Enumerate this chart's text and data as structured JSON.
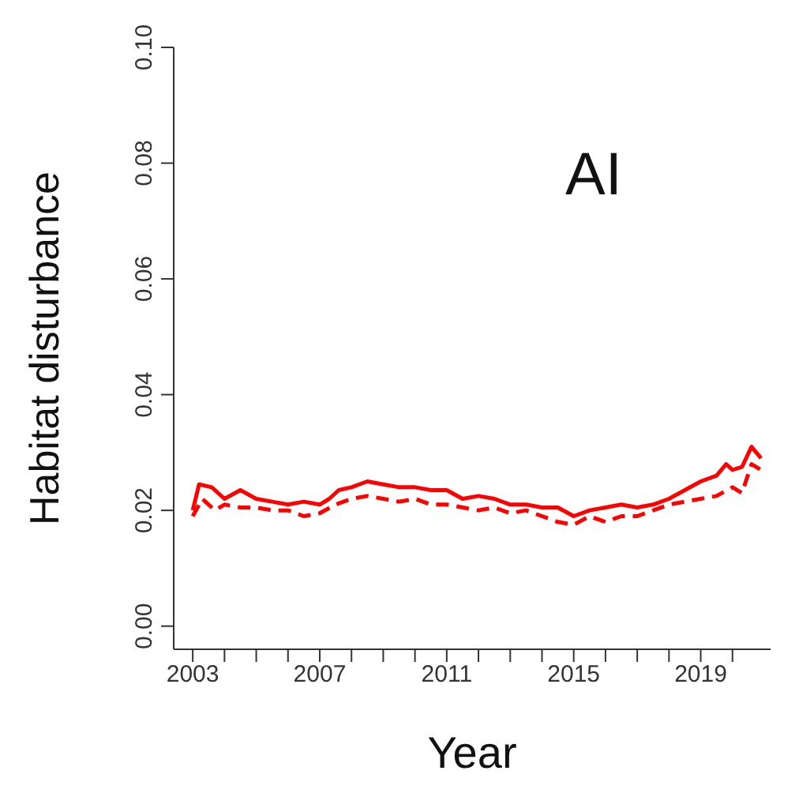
{
  "chart_data": {
    "type": "line",
    "xlabel": "Year",
    "ylabel": "Habitat disturbance",
    "annotations": [
      "AI"
    ],
    "xlim": [
      2002.4,
      2021.2
    ],
    "ylim": [
      -0.004,
      0.1
    ],
    "xticks": [
      2003,
      {
        "value": 2004,
        "label": null
      },
      {
        "value": 2005,
        "label": null
      },
      {
        "value": 2006,
        "label": null
      },
      2007,
      {
        "value": 2008,
        "label": null
      },
      {
        "value": 2009,
        "label": null
      },
      {
        "value": 2010,
        "label": null
      },
      2011,
      {
        "value": 2012,
        "label": null
      },
      {
        "value": 2013,
        "label": null
      },
      {
        "value": 2014,
        "label": null
      },
      2015,
      {
        "value": 2016,
        "label": null
      },
      {
        "value": 2017,
        "label": null
      },
      {
        "value": 2018,
        "label": null
      },
      2019,
      {
        "value": 2020,
        "label": null
      }
    ],
    "yticks": [
      {
        "value": 0,
        "label": "0.00"
      },
      {
        "value": 0.02,
        "label": "0.02"
      },
      {
        "value": 0.04,
        "label": "0.04"
      },
      {
        "value": 0.06,
        "label": "0.06"
      },
      {
        "value": 0.08,
        "label": "0.08"
      },
      {
        "value": 0.1,
        "label": "0.10"
      }
    ],
    "marker": "none",
    "series": [
      {
        "color": "#ff0000",
        "line_style": "solid",
        "x": [
          2003,
          2003.2,
          2003.6,
          2004,
          2004.5,
          2005,
          2005.5,
          2006,
          2006.5,
          2007,
          2007.3,
          2007.6,
          2008,
          2008.5,
          2009,
          2009.5,
          2010,
          2010.5,
          2011,
          2011.5,
          2012,
          2012.5,
          2013,
          2013.5,
          2014,
          2014.5,
          2015,
          2015.5,
          2016,
          2016.5,
          2017,
          2017.5,
          2018,
          2018.5,
          2019,
          2019.5,
          2019.8,
          2020,
          2020.3,
          2020.6,
          2020.9
        ],
        "values": [
          0.02,
          0.0245,
          0.024,
          0.022,
          0.0235,
          0.022,
          0.0215,
          0.021,
          0.0215,
          0.021,
          0.022,
          0.0235,
          0.024,
          0.025,
          0.0245,
          0.024,
          0.024,
          0.0235,
          0.0235,
          0.022,
          0.0225,
          0.022,
          0.021,
          0.021,
          0.0205,
          0.0205,
          0.019,
          0.02,
          0.0205,
          0.021,
          0.0205,
          0.021,
          0.022,
          0.0235,
          0.025,
          0.026,
          0.028,
          0.027,
          0.0275,
          0.031,
          0.029
        ]
      },
      {
        "color": "#ff0000",
        "line_style": "dashed",
        "x": [
          2003,
          2003.3,
          2003.7,
          2004,
          2004.5,
          2005,
          2005.5,
          2006,
          2006.5,
          2007,
          2007.5,
          2008,
          2008.5,
          2009,
          2009.5,
          2010,
          2010.5,
          2011,
          2011.5,
          2012,
          2012.5,
          2013,
          2013.5,
          2014,
          2014.5,
          2015,
          2015.5,
          2016,
          2016.5,
          2017,
          2017.5,
          2018,
          2018.5,
          2019,
          2019.5,
          2020,
          2020.3,
          2020.6,
          2020.9
        ],
        "values": [
          0.019,
          0.022,
          0.02,
          0.021,
          0.0205,
          0.0205,
          0.02,
          0.02,
          0.019,
          0.0195,
          0.021,
          0.022,
          0.0225,
          0.022,
          0.0215,
          0.022,
          0.021,
          0.021,
          0.0205,
          0.02,
          0.0205,
          0.0195,
          0.02,
          0.019,
          0.018,
          0.0175,
          0.019,
          0.018,
          0.019,
          0.019,
          0.02,
          0.021,
          0.0215,
          0.022,
          0.0225,
          0.024,
          0.023,
          0.028,
          0.027
        ]
      }
    ]
  }
}
